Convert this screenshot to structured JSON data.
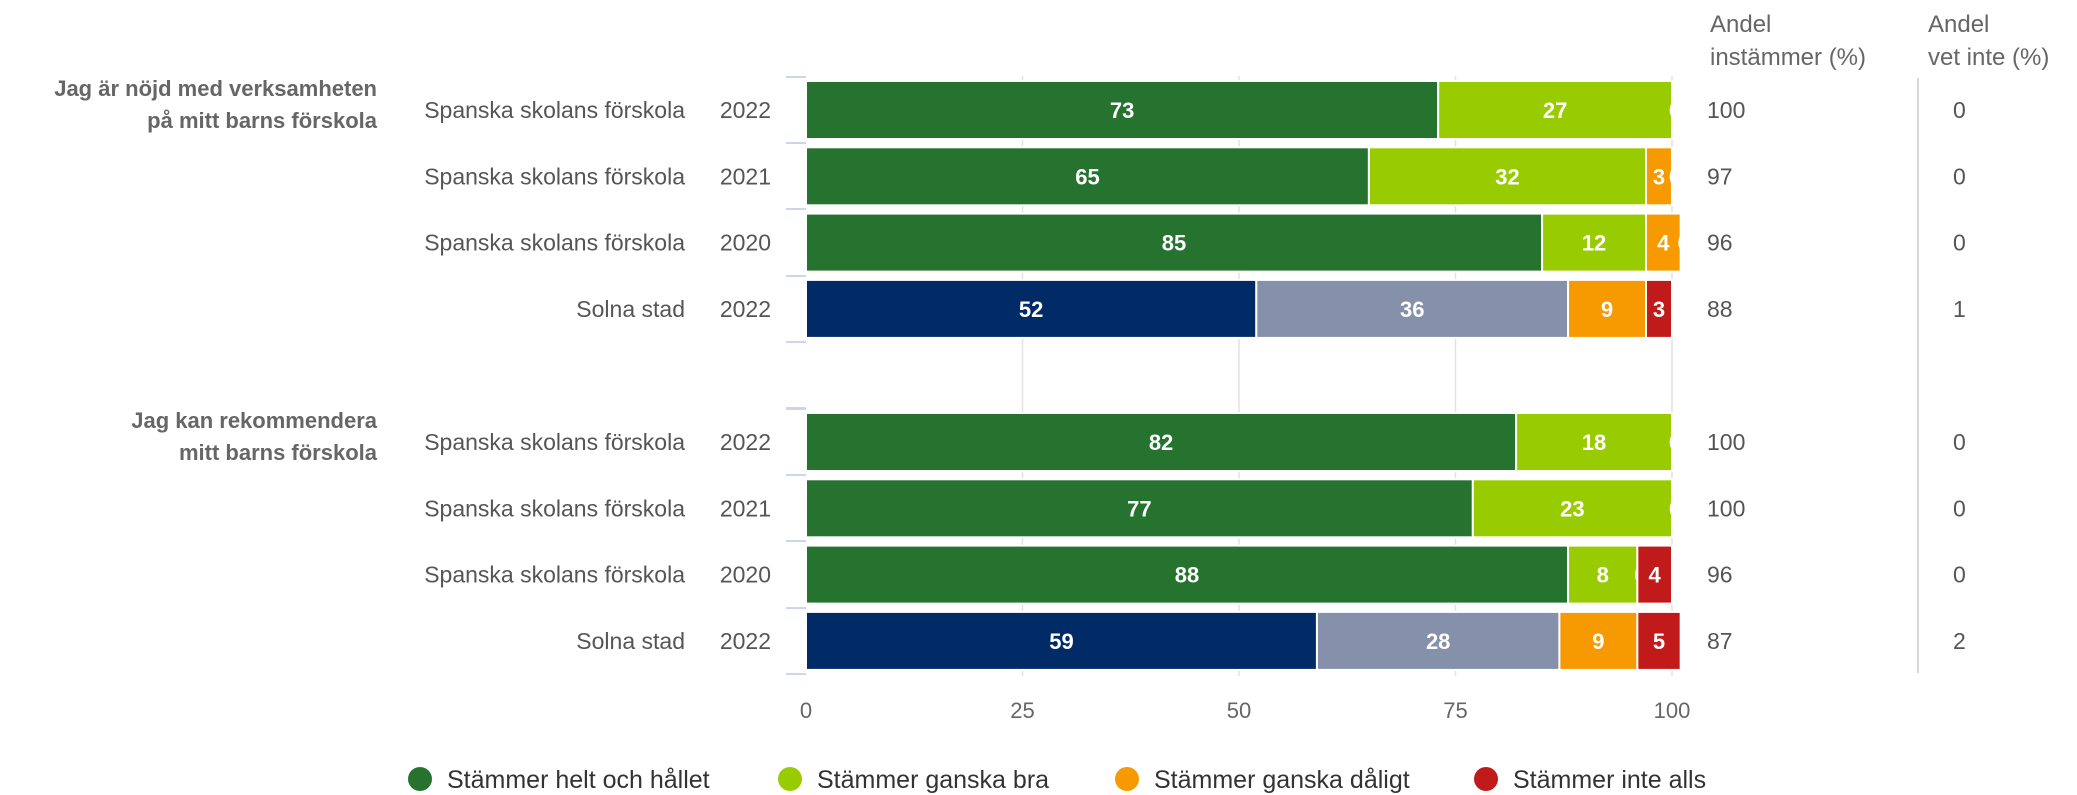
{
  "chart_data": {
    "type": "bar",
    "orientation": "horizontal",
    "stacked": true,
    "xlim": [
      0,
      100
    ],
    "xticks": [
      0,
      25,
      50,
      75,
      100
    ],
    "grid": true,
    "legend_position": "bottom",
    "column_headers": {
      "agree": [
        "Andel",
        "instämmer (%)"
      ],
      "dontknow": [
        "Andel",
        "vet inte (%)"
      ]
    },
    "segment_colors": {
      "school": [
        "#267330",
        "#99cc00",
        "#f79900",
        "#c11a1a"
      ],
      "city": [
        "#002b66",
        "#8590aa",
        "#f79900",
        "#c11a1a"
      ]
    },
    "groups": [
      {
        "question": [
          "Jag är nöjd med verksamheten",
          "på mitt barns förskola"
        ],
        "rows": [
          {
            "unit": "Spanska skolans förskola",
            "year": "2022",
            "palette": "school",
            "values": [
              73,
              27,
              0,
              0
            ],
            "labels": [
              "73",
              "27",
              "0",
              ""
            ],
            "agree": "100",
            "dontknow": "0"
          },
          {
            "unit": "Spanska skolans förskola",
            "year": "2021",
            "palette": "school",
            "values": [
              65,
              32,
              3,
              0
            ],
            "labels": [
              "65",
              "32",
              "3",
              "0"
            ],
            "agree": "97",
            "dontknow": "0"
          },
          {
            "unit": "Spanska skolans förskola",
            "year": "2020",
            "palette": "school",
            "values": [
              85,
              12,
              4,
              0
            ],
            "labels": [
              "85",
              "12",
              "4",
              "0"
            ],
            "agree": "96",
            "dontknow": "0"
          },
          {
            "unit": "Solna stad",
            "year": "2022",
            "palette": "city",
            "values": [
              52,
              36,
              9,
              3
            ],
            "labels": [
              "52",
              "36",
              "9",
              "3"
            ],
            "agree": "88",
            "dontknow": "1"
          }
        ]
      },
      {
        "question": [
          "Jag kan rekommendera",
          "mitt barns förskola"
        ],
        "rows": [
          {
            "unit": "Spanska skolans förskola",
            "year": "2022",
            "palette": "school",
            "values": [
              82,
              18,
              0,
              0
            ],
            "labels": [
              "82",
              "18",
              "0",
              ""
            ],
            "agree": "100",
            "dontknow": "0"
          },
          {
            "unit": "Spanska skolans förskola",
            "year": "2021",
            "palette": "school",
            "values": [
              77,
              23,
              0,
              0
            ],
            "labels": [
              "77",
              "23",
              "0",
              ""
            ],
            "agree": "100",
            "dontknow": "0"
          },
          {
            "unit": "Spanska skolans förskola",
            "year": "2020",
            "palette": "school",
            "values": [
              88,
              8,
              0,
              4
            ],
            "labels": [
              "88",
              "8",
              "0",
              "4"
            ],
            "agree": "96",
            "dontknow": "0"
          },
          {
            "unit": "Solna stad",
            "year": "2022",
            "palette": "city",
            "values": [
              59,
              28,
              9,
              5
            ],
            "labels": [
              "59",
              "28",
              "9",
              "5"
            ],
            "agree": "87",
            "dontknow": "2"
          }
        ]
      }
    ],
    "legend": [
      {
        "label": "Stämmer helt och hållet",
        "color": "#267330"
      },
      {
        "label": "Stämmer ganska bra",
        "color": "#99cc00"
      },
      {
        "label": "Stämmer ganska dåligt",
        "color": "#f79900"
      },
      {
        "label": "Stämmer inte alls",
        "color": "#c11a1a"
      }
    ]
  }
}
